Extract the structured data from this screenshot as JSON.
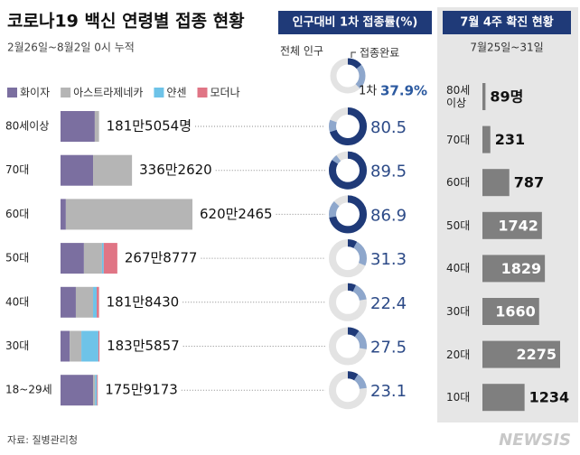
{
  "title": "코로나19 백신 연령별 접종 현황",
  "subtitle": "2월26일~8월2일 0시 누적",
  "source": "자료: 질병관리청",
  "credit": "NEWSIS",
  "chart_data": [
    {
      "type": "stacked_bar",
      "header": "인구대비 1차 접종률(%)",
      "population_label": "전체 인구",
      "completed_label": "접종완료",
      "categories": [
        "80세이상",
        "70대",
        "60대",
        "50대",
        "40대",
        "30대",
        "18~29세"
      ],
      "series": [
        {
          "name": "화이자",
          "color": "#7b6fa0",
          "values": [
            161,
            153,
            25,
            110,
            72,
            43,
            153
          ]
        },
        {
          "name": "아스트라제네카",
          "color": "#b5b5b5",
          "values": [
            20,
            183,
            595,
            85,
            81,
            55,
            10
          ]
        },
        {
          "name": "얀센",
          "color": "#6ec3e8",
          "values": [
            0,
            0,
            0,
            8,
            17,
            80,
            8
          ]
        },
        {
          "name": "모더나",
          "color": "#e07585",
          "values": [
            0,
            0,
            0,
            64,
            11,
            5,
            4
          ]
        }
      ],
      "total_labels": [
        "181만5054명",
        "336만2620",
        "620만2465",
        "267만8777",
        "181만8430",
        "183만5857",
        "175만9173"
      ],
      "first_dose": {
        "name": "1차",
        "color": "#8ea7cc",
        "values": [
          80.5,
          89.5,
          86.9,
          31.3,
          22.4,
          27.5,
          23.1
        ],
        "example_value": 37.9,
        "example_label": "37.9%"
      },
      "completed": {
        "color": "#1f3a78",
        "values": [
          70,
          84,
          72,
          8,
          7,
          10,
          9
        ],
        "example_value": 14
      }
    },
    {
      "type": "bar",
      "title": "7월 4주 확진 현황",
      "subtitle": "7월25일~31일",
      "categories": [
        "80세 이상",
        "70대",
        "60대",
        "50대",
        "40대",
        "30대",
        "20대",
        "10대"
      ],
      "values": [
        89,
        231,
        787,
        1742,
        1829,
        1660,
        2275,
        1234
      ],
      "value_labels": [
        "89명",
        "231",
        "787",
        "1742",
        "1829",
        "1660",
        "2275",
        "1234"
      ],
      "color": "#7f7f7f"
    }
  ]
}
